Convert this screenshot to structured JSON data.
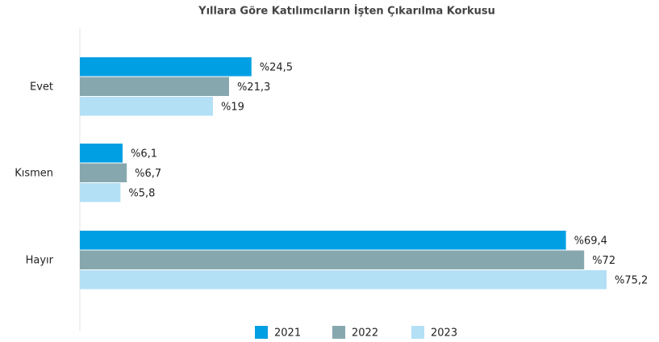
{
  "chart_data": {
    "type": "bar",
    "orientation": "horizontal",
    "title": "Yıllara Göre Katılımcıların İşten Çıkarılma Korkusu",
    "categories": [
      "Evet",
      "Kısmen",
      "Hayır"
    ],
    "series": [
      {
        "name": "2021",
        "color": "#009fe3",
        "values": [
          24.5,
          6.1,
          69.4
        ],
        "value_labels": [
          "%24,5",
          "%6,1",
          "%69,4"
        ]
      },
      {
        "name": "2022",
        "color": "#87a7ae",
        "values": [
          21.3,
          6.7,
          72
        ],
        "value_labels": [
          "%21,3",
          "%6,7",
          "%72"
        ]
      },
      {
        "name": "2023",
        "color": "#b3e0f5",
        "values": [
          19,
          5.8,
          75.2
        ],
        "value_labels": [
          "%19",
          "%5,8",
          "%75,2"
        ]
      }
    ],
    "legend": "bottom"
  }
}
